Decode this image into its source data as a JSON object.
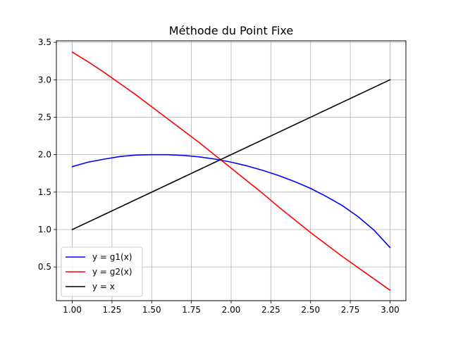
{
  "chart_data": {
    "type": "line",
    "title": "Méthode du Point Fixe",
    "xlabel": "",
    "ylabel": "",
    "xlim": [
      0.9,
      3.1
    ],
    "ylim": [
      0.05,
      3.52
    ],
    "grid": true,
    "legend_position": "lower-left",
    "xticks": [
      1.0,
      1.25,
      1.5,
      1.75,
      2.0,
      2.25,
      2.5,
      2.75,
      3.0
    ],
    "xtick_labels": [
      "1.00",
      "1.25",
      "1.50",
      "1.75",
      "2.00",
      "2.25",
      "2.50",
      "2.75",
      "3.00"
    ],
    "yticks": [
      0.5,
      1.0,
      1.5,
      2.0,
      2.5,
      3.0,
      3.5
    ],
    "ytick_labels": [
      "0.5",
      "1.0",
      "1.5",
      "2.0",
      "2.5",
      "3.0",
      "3.5"
    ],
    "series": [
      {
        "name": "y = g1(x)",
        "color": "#0000ff",
        "x": [
          1.0,
          1.1,
          1.2,
          1.3,
          1.4,
          1.5,
          1.6,
          1.7,
          1.8,
          1.9,
          2.0,
          2.1,
          2.2,
          2.3,
          2.4,
          2.5,
          2.6,
          2.7,
          2.8,
          2.9,
          3.0
        ],
        "y": [
          1.84,
          1.9,
          1.94,
          1.975,
          1.995,
          2.0,
          2.0,
          1.99,
          1.97,
          1.94,
          1.9,
          1.85,
          1.79,
          1.72,
          1.64,
          1.55,
          1.44,
          1.32,
          1.17,
          0.99,
          0.76
        ]
      },
      {
        "name": "y = g2(x)",
        "color": "#ff0000",
        "x": [
          1.0,
          1.1,
          1.2,
          1.3,
          1.4,
          1.5,
          1.6,
          1.7,
          1.8,
          1.9,
          2.0,
          2.1,
          2.2,
          2.3,
          2.4,
          2.5,
          2.6,
          2.7,
          2.8,
          2.9,
          3.0
        ],
        "y": [
          3.37,
          3.24,
          3.1,
          2.95,
          2.8,
          2.64,
          2.48,
          2.32,
          2.16,
          1.99,
          1.82,
          1.65,
          1.48,
          1.3,
          1.13,
          0.96,
          0.8,
          0.64,
          0.49,
          0.34,
          0.19
        ]
      },
      {
        "name": "y = x",
        "color": "#000000",
        "x": [
          1.0,
          3.0
        ],
        "y": [
          1.0,
          3.0
        ]
      }
    ]
  }
}
